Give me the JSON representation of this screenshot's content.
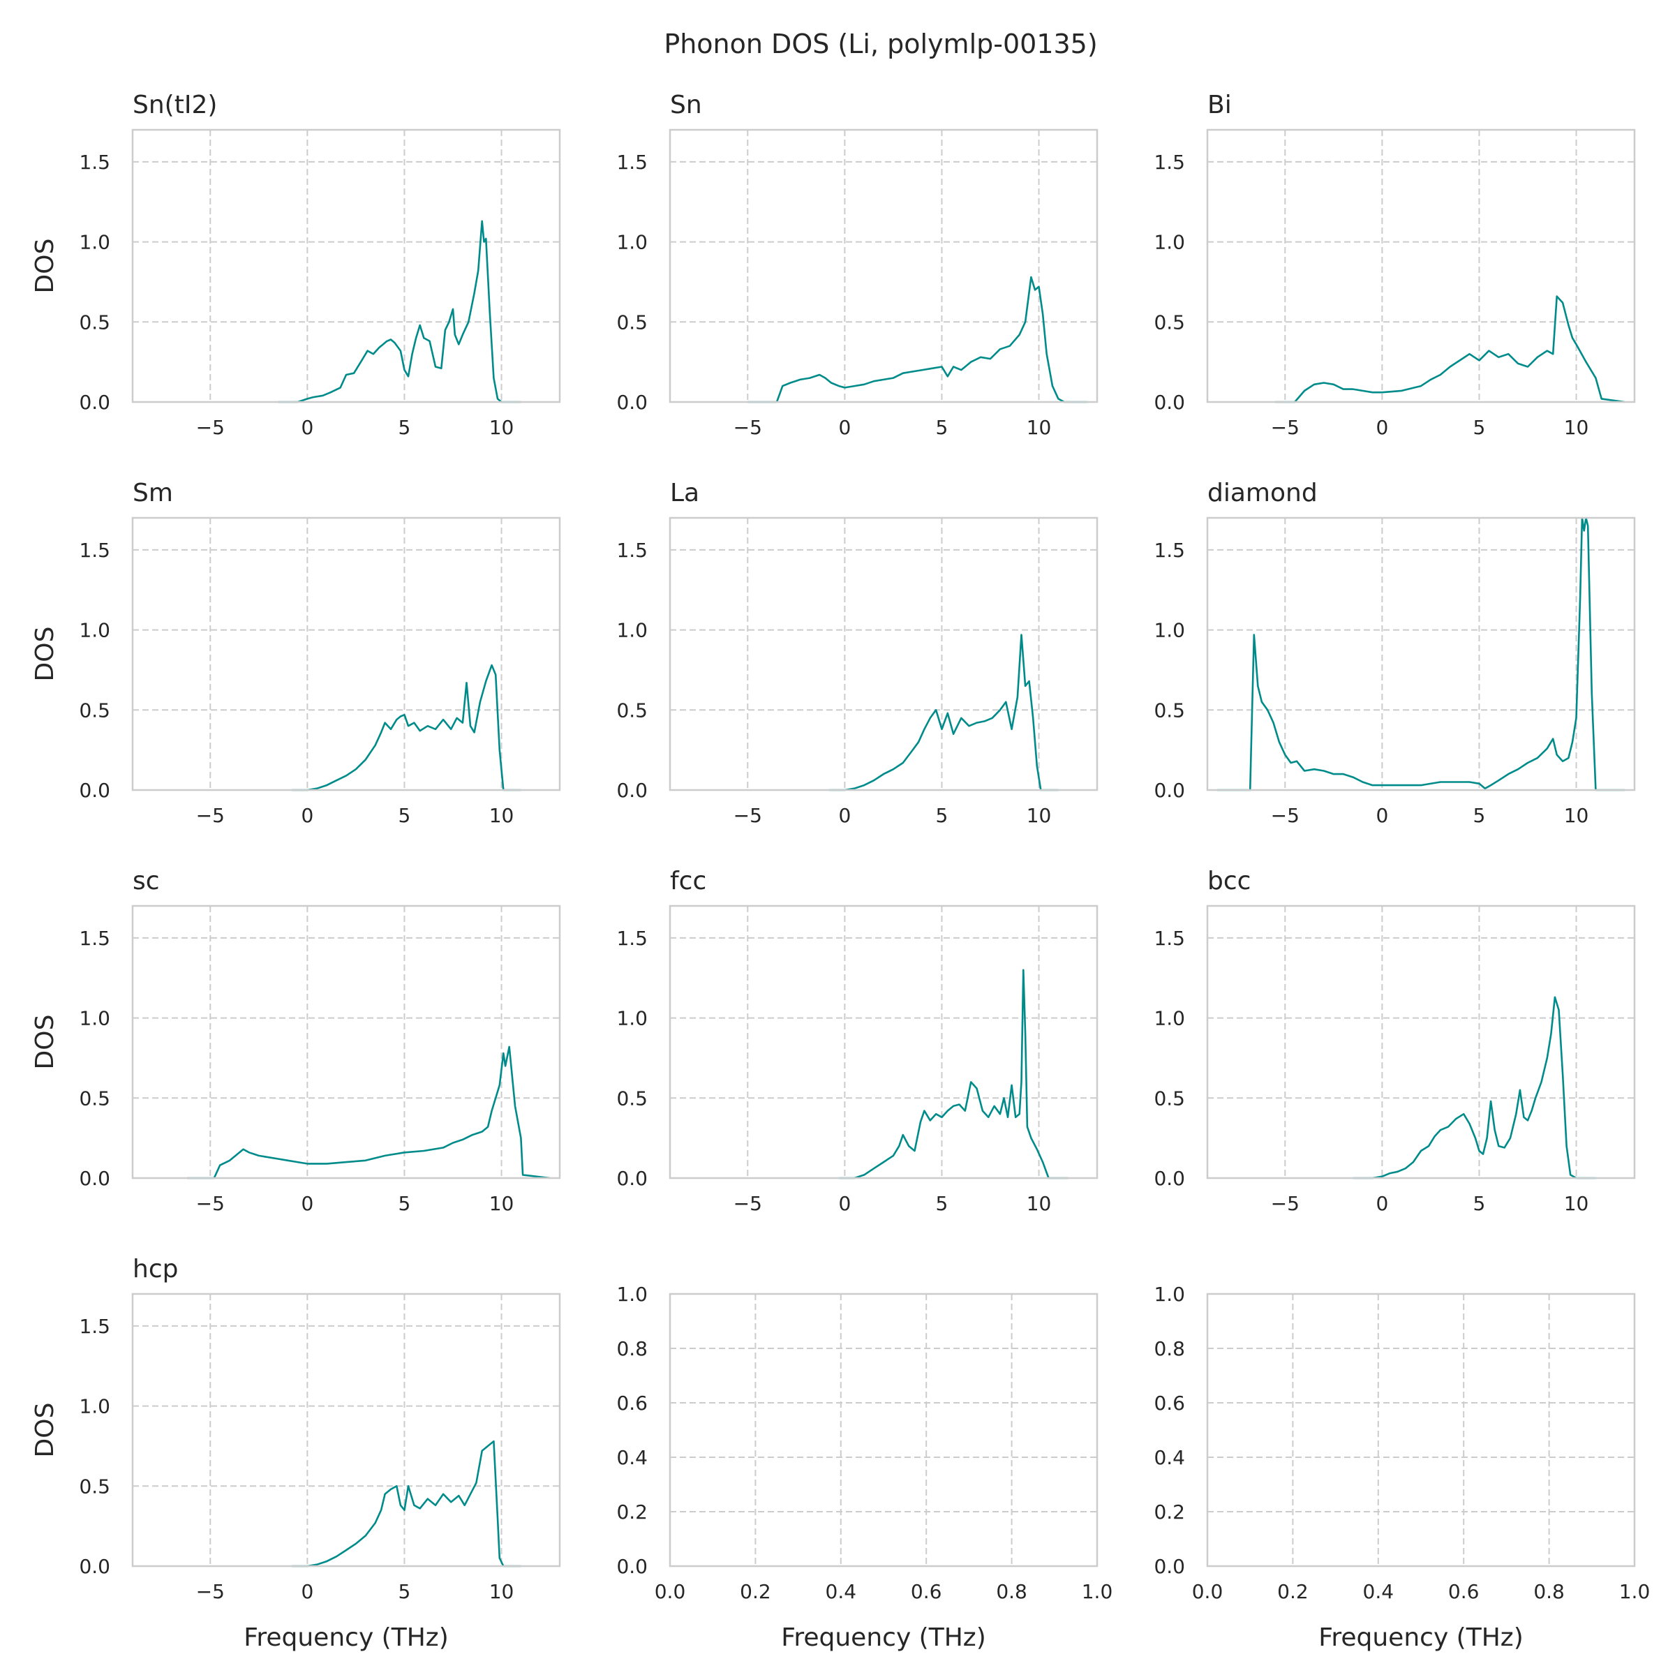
{
  "figure": {
    "title": "Phonon DOS (Li, polymlp-00135)",
    "xlabel": "Frequency (THz)",
    "ylabel": "DOS",
    "line_color": "#008b8b",
    "grid_color": "#cccccc",
    "spine_color": "#cccccc"
  },
  "chart_data": [
    {
      "type": "line",
      "title": "Sn(tI2)",
      "xlim": [
        -9,
        13
      ],
      "ylim": [
        0,
        1.7
      ],
      "xticks": [
        -5,
        0,
        5,
        10
      ],
      "yticks": [
        0.0,
        0.5,
        1.0,
        1.5
      ],
      "x": [
        -1.5,
        -0.5,
        0,
        0.3,
        0.8,
        1.2,
        1.7,
        2.0,
        2.4,
        2.8,
        3.1,
        3.4,
        3.7,
        3.9,
        4.1,
        4.3,
        4.5,
        4.8,
        5.0,
        5.2,
        5.4,
        5.6,
        5.8,
        6.0,
        6.3,
        6.6,
        6.9,
        7.1,
        7.3,
        7.5,
        7.6,
        7.8,
        8.0,
        8.3,
        8.6,
        8.8,
        9.0,
        9.1,
        9.2,
        9.4,
        9.6,
        9.8,
        10.0,
        10.5,
        11.0
      ],
      "y": [
        0,
        0,
        0.02,
        0.03,
        0.04,
        0.06,
        0.09,
        0.17,
        0.18,
        0.26,
        0.32,
        0.3,
        0.34,
        0.36,
        0.38,
        0.39,
        0.37,
        0.32,
        0.2,
        0.16,
        0.3,
        0.4,
        0.48,
        0.4,
        0.38,
        0.22,
        0.21,
        0.45,
        0.5,
        0.58,
        0.42,
        0.36,
        0.42,
        0.5,
        0.68,
        0.82,
        1.13,
        1.0,
        1.02,
        0.55,
        0.15,
        0.02,
        0,
        0,
        0
      ]
    },
    {
      "type": "line",
      "title": "Sn",
      "xlim": [
        -9,
        13
      ],
      "ylim": [
        0,
        1.7
      ],
      "xticks": [
        -5,
        0,
        5,
        10
      ],
      "yticks": [
        0.0,
        0.5,
        1.0,
        1.5
      ],
      "x": [
        -5,
        -3.5,
        -3.2,
        -2.8,
        -2.3,
        -1.8,
        -1.3,
        -1.0,
        -0.7,
        -0.3,
        0,
        0.5,
        1.0,
        1.5,
        2.0,
        2.5,
        3.0,
        3.5,
        4.0,
        4.5,
        5.0,
        5.3,
        5.6,
        6.0,
        6.5,
        7.0,
        7.5,
        8.0,
        8.5,
        9.0,
        9.3,
        9.6,
        9.8,
        10.0,
        10.2,
        10.4,
        10.7,
        11.0,
        11.3,
        12.5
      ],
      "y": [
        0,
        0,
        0.1,
        0.12,
        0.14,
        0.15,
        0.17,
        0.15,
        0.12,
        0.1,
        0.09,
        0.1,
        0.11,
        0.13,
        0.14,
        0.15,
        0.18,
        0.19,
        0.2,
        0.21,
        0.22,
        0.16,
        0.22,
        0.2,
        0.25,
        0.28,
        0.27,
        0.33,
        0.35,
        0.42,
        0.5,
        0.78,
        0.7,
        0.72,
        0.55,
        0.3,
        0.1,
        0.02,
        0,
        0
      ]
    },
    {
      "type": "line",
      "title": "Bi",
      "xlim": [
        -9,
        13
      ],
      "ylim": [
        0,
        1.7
      ],
      "xticks": [
        -5,
        0,
        5,
        10
      ],
      "yticks": [
        0.0,
        0.5,
        1.0,
        1.5
      ],
      "x": [
        -5.5,
        -4.5,
        -4.0,
        -3.5,
        -3.0,
        -2.5,
        -2.0,
        -1.5,
        -1.0,
        -0.5,
        0,
        1.0,
        2.0,
        2.5,
        3.0,
        3.5,
        4.0,
        4.5,
        5.0,
        5.5,
        6.0,
        6.5,
        7.0,
        7.5,
        8.0,
        8.5,
        8.8,
        9.0,
        9.3,
        9.6,
        9.8,
        10.0,
        10.5,
        11.0,
        11.3,
        12.5
      ],
      "y": [
        0,
        0,
        0.07,
        0.11,
        0.12,
        0.11,
        0.08,
        0.08,
        0.07,
        0.06,
        0.06,
        0.07,
        0.1,
        0.14,
        0.17,
        0.22,
        0.26,
        0.3,
        0.26,
        0.32,
        0.28,
        0.3,
        0.24,
        0.22,
        0.28,
        0.32,
        0.3,
        0.66,
        0.62,
        0.48,
        0.4,
        0.36,
        0.25,
        0.15,
        0.02,
        0
      ]
    },
    {
      "type": "line",
      "title": "Sm",
      "xlim": [
        -9,
        13
      ],
      "ylim": [
        0,
        1.7
      ],
      "xticks": [
        -5,
        0,
        5,
        10
      ],
      "yticks": [
        0.0,
        0.5,
        1.0,
        1.5
      ],
      "x": [
        -0.8,
        0,
        0.5,
        1.0,
        1.5,
        2.0,
        2.5,
        3.0,
        3.5,
        3.8,
        4.0,
        4.3,
        4.6,
        4.8,
        5.0,
        5.2,
        5.5,
        5.8,
        6.2,
        6.6,
        7.0,
        7.4,
        7.7,
        8.0,
        8.2,
        8.4,
        8.6,
        8.9,
        9.2,
        9.5,
        9.7,
        9.9,
        10.1,
        10.5,
        11.0
      ],
      "y": [
        0,
        0,
        0.01,
        0.03,
        0.06,
        0.09,
        0.13,
        0.19,
        0.28,
        0.36,
        0.42,
        0.38,
        0.44,
        0.46,
        0.47,
        0.4,
        0.42,
        0.37,
        0.4,
        0.38,
        0.44,
        0.38,
        0.45,
        0.42,
        0.67,
        0.4,
        0.36,
        0.55,
        0.68,
        0.78,
        0.72,
        0.25,
        0,
        0,
        0
      ]
    },
    {
      "type": "line",
      "title": "La",
      "xlim": [
        -9,
        13
      ],
      "ylim": [
        0,
        1.7
      ],
      "xticks": [
        -5,
        0,
        5,
        10
      ],
      "yticks": [
        0.0,
        0.5,
        1.0,
        1.5
      ],
      "x": [
        -0.8,
        0,
        0.5,
        1.0,
        1.5,
        2.0,
        2.5,
        3.0,
        3.5,
        3.8,
        4.1,
        4.4,
        4.7,
        5.0,
        5.3,
        5.6,
        6.0,
        6.4,
        6.8,
        7.2,
        7.6,
        8.0,
        8.3,
        8.6,
        8.9,
        9.1,
        9.3,
        9.5,
        9.7,
        9.9,
        10.1,
        10.5,
        11.0
      ],
      "y": [
        0,
        0,
        0.01,
        0.03,
        0.06,
        0.1,
        0.13,
        0.17,
        0.25,
        0.3,
        0.38,
        0.45,
        0.5,
        0.38,
        0.48,
        0.35,
        0.45,
        0.4,
        0.42,
        0.43,
        0.45,
        0.5,
        0.55,
        0.38,
        0.58,
        0.97,
        0.65,
        0.68,
        0.45,
        0.15,
        0,
        0,
        0
      ]
    },
    {
      "type": "line",
      "title": "diamond",
      "xlim": [
        -9,
        13
      ],
      "ylim": [
        0,
        1.7
      ],
      "xticks": [
        -5,
        0,
        5,
        10
      ],
      "yticks": [
        0.0,
        0.5,
        1.0,
        1.5
      ],
      "x": [
        -8.5,
        -6.8,
        -6.6,
        -6.4,
        -6.2,
        -5.9,
        -5.6,
        -5.3,
        -5.0,
        -4.7,
        -4.4,
        -4.0,
        -3.5,
        -3.0,
        -2.5,
        -2.0,
        -1.5,
        -1.0,
        -0.5,
        0,
        1.0,
        2.0,
        3.0,
        3.5,
        4.0,
        4.5,
        5.0,
        5.3,
        5.6,
        6.0,
        6.5,
        7.0,
        7.5,
        8.0,
        8.5,
        8.8,
        9.0,
        9.3,
        9.6,
        9.8,
        10.0,
        10.2,
        10.3,
        10.4,
        10.5,
        10.6,
        10.8,
        11.0,
        12.5
      ],
      "y": [
        0,
        0,
        0.97,
        0.65,
        0.55,
        0.5,
        0.42,
        0.3,
        0.22,
        0.17,
        0.18,
        0.12,
        0.13,
        0.12,
        0.1,
        0.1,
        0.08,
        0.05,
        0.03,
        0.03,
        0.03,
        0.03,
        0.05,
        0.05,
        0.05,
        0.05,
        0.04,
        0.01,
        0.03,
        0.06,
        0.1,
        0.13,
        0.17,
        0.2,
        0.26,
        0.32,
        0.22,
        0.18,
        0.2,
        0.3,
        0.45,
        1.2,
        1.7,
        1.62,
        1.7,
        1.65,
        0.6,
        0,
        0
      ]
    },
    {
      "type": "line",
      "title": "sc",
      "xlim": [
        -9,
        13
      ],
      "ylim": [
        0,
        1.7
      ],
      "xticks": [
        -5,
        0,
        5,
        10
      ],
      "yticks": [
        0.0,
        0.5,
        1.0,
        1.5
      ],
      "x": [
        -6.2,
        -4.8,
        -4.5,
        -4.0,
        -3.6,
        -3.3,
        -3.0,
        -2.5,
        -2.0,
        -1.5,
        -1.0,
        -0.5,
        0,
        1.0,
        2.0,
        3.0,
        4.0,
        5.0,
        6.0,
        7.0,
        7.5,
        8.0,
        8.5,
        9.0,
        9.3,
        9.5,
        9.7,
        9.9,
        10.1,
        10.2,
        10.4,
        10.7,
        11.0,
        11.1,
        12.5
      ],
      "y": [
        0,
        0,
        0.08,
        0.11,
        0.15,
        0.18,
        0.16,
        0.14,
        0.13,
        0.12,
        0.11,
        0.1,
        0.09,
        0.09,
        0.1,
        0.11,
        0.14,
        0.16,
        0.17,
        0.19,
        0.22,
        0.24,
        0.27,
        0.29,
        0.32,
        0.42,
        0.5,
        0.58,
        0.78,
        0.7,
        0.82,
        0.45,
        0.25,
        0.02,
        0
      ]
    },
    {
      "type": "line",
      "title": "fcc",
      "xlim": [
        -9,
        13
      ],
      "ylim": [
        0,
        1.7
      ],
      "xticks": [
        -5,
        0,
        5,
        10
      ],
      "yticks": [
        0.0,
        0.5,
        1.0,
        1.5
      ],
      "x": [
        -0.3,
        0.5,
        1.0,
        1.5,
        2.0,
        2.5,
        2.8,
        3.0,
        3.3,
        3.6,
        3.9,
        4.1,
        4.4,
        4.7,
        5.0,
        5.3,
        5.6,
        5.9,
        6.2,
        6.5,
        6.8,
        7.1,
        7.4,
        7.7,
        8.0,
        8.2,
        8.4,
        8.6,
        8.8,
        9.0,
        9.1,
        9.2,
        9.3,
        9.4,
        9.6,
        9.9,
        10.2,
        10.5,
        11.5
      ],
      "y": [
        0,
        0,
        0.02,
        0.06,
        0.1,
        0.14,
        0.2,
        0.27,
        0.2,
        0.17,
        0.35,
        0.42,
        0.36,
        0.4,
        0.38,
        0.42,
        0.45,
        0.46,
        0.42,
        0.6,
        0.56,
        0.42,
        0.38,
        0.45,
        0.4,
        0.5,
        0.38,
        0.58,
        0.38,
        0.4,
        0.6,
        1.3,
        0.9,
        0.32,
        0.25,
        0.18,
        0.1,
        0,
        0
      ]
    },
    {
      "type": "line",
      "title": "bcc",
      "xlim": [
        -9,
        13
      ],
      "ylim": [
        0,
        1.7
      ],
      "xticks": [
        -5,
        0,
        5,
        10
      ],
      "yticks": [
        0.0,
        0.5,
        1.0,
        1.5
      ],
      "x": [
        -1.5,
        -0.5,
        0,
        0.4,
        0.8,
        1.2,
        1.6,
        2.0,
        2.4,
        2.7,
        3.0,
        3.4,
        3.8,
        4.2,
        4.5,
        4.8,
        5.0,
        5.2,
        5.4,
        5.6,
        5.8,
        6.0,
        6.3,
        6.6,
        6.9,
        7.1,
        7.3,
        7.5,
        7.7,
        7.9,
        8.2,
        8.5,
        8.7,
        8.9,
        9.1,
        9.3,
        9.5,
        9.7,
        10.0,
        10.5,
        11.0
      ],
      "y": [
        0,
        0,
        0.01,
        0.03,
        0.04,
        0.06,
        0.1,
        0.17,
        0.2,
        0.26,
        0.3,
        0.32,
        0.37,
        0.4,
        0.34,
        0.25,
        0.17,
        0.15,
        0.25,
        0.48,
        0.3,
        0.2,
        0.19,
        0.25,
        0.4,
        0.55,
        0.38,
        0.36,
        0.42,
        0.5,
        0.6,
        0.75,
        0.9,
        1.13,
        1.05,
        0.65,
        0.2,
        0.02,
        0,
        0,
        0
      ]
    },
    {
      "type": "line",
      "title": "hcp",
      "xlim": [
        -9,
        13
      ],
      "ylim": [
        0,
        1.7
      ],
      "xticks": [
        -5,
        0,
        5,
        10
      ],
      "yticks": [
        0.0,
        0.5,
        1.0,
        1.5
      ],
      "x": [
        -0.8,
        0,
        0.5,
        1.0,
        1.5,
        2.0,
        2.5,
        3.0,
        3.5,
        3.8,
        4.0,
        4.3,
        4.6,
        4.8,
        5.0,
        5.2,
        5.5,
        5.8,
        6.2,
        6.6,
        7.0,
        7.4,
        7.8,
        8.1,
        8.4,
        8.7,
        9.0,
        9.3,
        9.6,
        9.8,
        9.9,
        10.1,
        10.5,
        11.0
      ],
      "y": [
        0,
        0,
        0.01,
        0.03,
        0.06,
        0.1,
        0.14,
        0.19,
        0.27,
        0.35,
        0.45,
        0.48,
        0.5,
        0.38,
        0.35,
        0.5,
        0.38,
        0.36,
        0.42,
        0.38,
        0.45,
        0.4,
        0.44,
        0.38,
        0.45,
        0.52,
        0.72,
        0.75,
        0.78,
        0.3,
        0.05,
        0,
        0,
        0
      ]
    },
    {
      "type": "empty",
      "title": "",
      "xlim": [
        0,
        1
      ],
      "ylim": [
        0,
        1
      ],
      "xticks": [
        0.0,
        0.2,
        0.4,
        0.6,
        0.8,
        1.0
      ],
      "yticks": [
        0.0,
        0.2,
        0.4,
        0.6,
        0.8,
        1.0
      ]
    },
    {
      "type": "empty",
      "title": "",
      "xlim": [
        0,
        1
      ],
      "ylim": [
        0,
        1
      ],
      "xticks": [
        0.0,
        0.2,
        0.4,
        0.6,
        0.8,
        1.0
      ],
      "yticks": [
        0.0,
        0.2,
        0.4,
        0.6,
        0.8,
        1.0
      ]
    }
  ]
}
